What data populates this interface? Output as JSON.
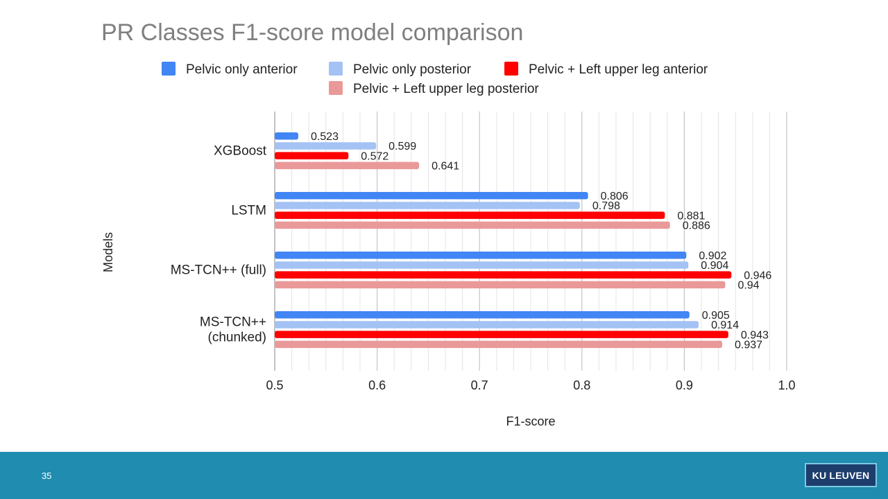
{
  "slide": {
    "title": "PR Classes F1-score model comparison",
    "page_number": "35",
    "logo_text": "KU LEUVEN"
  },
  "colors": {
    "title_text": "#7f7f7f",
    "footer_band": "#1f8cb0",
    "logo_background": "#1d3d6d"
  },
  "chart_data": {
    "type": "bar",
    "orientation": "horizontal",
    "xlabel": "F1-score",
    "ylabel": "Models",
    "xlim": [
      0.5,
      1.0
    ],
    "x_ticks": [
      "0.5",
      "0.6",
      "0.7",
      "0.8",
      "0.9",
      "1.0"
    ],
    "grid": "vertical, major every 0.1 and minor every 0.0167",
    "legend_position": "top",
    "categories": [
      "XGBoost",
      "LSTM",
      "MS-TCN++ (full)",
      "MS-TCN++ (chunked)"
    ],
    "category_lines": [
      [
        "XGBoost"
      ],
      [
        "LSTM"
      ],
      [
        "MS-TCN++ (full)"
      ],
      [
        "MS-TCN++",
        "(chunked)"
      ]
    ],
    "series": [
      {
        "name": "Pelvic only anterior",
        "color": "#4285f4",
        "values": [
          0.523,
          0.806,
          0.902,
          0.905
        ],
        "labels": [
          "0.523",
          "0.806",
          "0.902",
          "0.905"
        ]
      },
      {
        "name": "Pelvic only posterior",
        "color": "#a4c2f4",
        "values": [
          0.599,
          0.798,
          0.904,
          0.914
        ],
        "labels": [
          "0.599",
          "0.798",
          "0.904",
          "0.914"
        ]
      },
      {
        "name": "Pelvic + Left upper leg anterior",
        "color": "#ff0000",
        "values": [
          0.572,
          0.881,
          0.946,
          0.943
        ],
        "labels": [
          "0.572",
          "0.881",
          "0.946",
          "0.943"
        ]
      },
      {
        "name": "Pelvic + Left upper leg posterior",
        "color": "#ea9999",
        "values": [
          0.641,
          0.886,
          0.94,
          0.937
        ],
        "labels": [
          "0.641",
          "0.886",
          "0.94",
          "0.937"
        ]
      }
    ]
  }
}
